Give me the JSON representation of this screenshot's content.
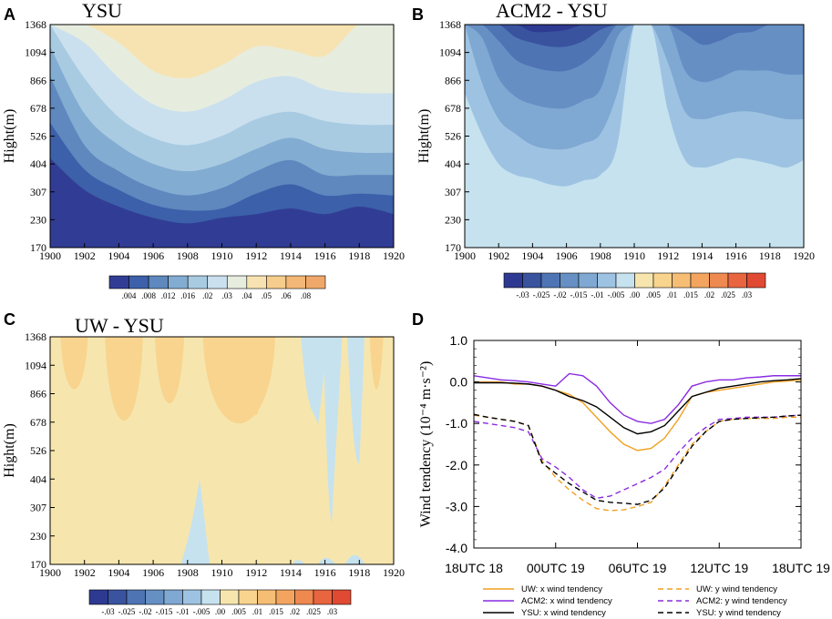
{
  "chart_data": [
    {
      "type": "heatmap",
      "panel": "A",
      "title": "YSU",
      "ylabel": "Hight(m)",
      "x_ticks": [
        "1900",
        "1902",
        "1904",
        "1906",
        "1908",
        "1910",
        "1912",
        "1914",
        "1916",
        "1918",
        "1920"
      ],
      "y_ticks": [
        "170",
        "230",
        "307",
        "404",
        "526",
        "678",
        "866",
        "1094",
        "1368"
      ],
      "colorbar": {
        "labels": [
          ".004",
          ".008",
          ".012",
          ".016",
          ".02",
          ".03",
          ".04",
          ".05",
          ".06",
          ".08"
        ],
        "colors": [
          "#313d95",
          "#3c60a9",
          "#5e88be",
          "#83acd2",
          "#a8cbe2",
          "#cae0ee",
          "#e6eddf",
          "#f7e3b2",
          "#f6cd8d",
          "#f4b876",
          "#f0a86a"
        ]
      },
      "contour_levels": {
        "x": [
          1900,
          1902,
          1904,
          1906,
          1908,
          1910,
          1912,
          1914,
          1916,
          1918,
          1920
        ],
        "bands": [
          [
            650,
            480,
            390,
            330,
            300,
            330,
            350,
            380,
            350,
            390,
            350
          ],
          [
            840,
            590,
            480,
            400,
            370,
            380,
            460,
            510,
            450,
            460,
            450
          ],
          [
            1090,
            720,
            580,
            490,
            450,
            490,
            580,
            640,
            560,
            560,
            560
          ],
          [
            1250,
            890,
            720,
            620,
            580,
            620,
            700,
            760,
            700,
            680,
            680
          ],
          [
            1368,
            1080,
            870,
            760,
            720,
            770,
            860,
            900,
            850,
            830,
            830
          ],
          [
            1368,
            1270,
            1080,
            940,
            900,
            960,
            1060,
            1090,
            1020,
            1000,
            1000
          ],
          [
            1368,
            1368,
            1270,
            1120,
            1080,
            1150,
            1250,
            1230,
            1200,
            1368,
            1368
          ],
          [
            1368,
            1368,
            1368,
            1368,
            1368,
            1368,
            1368,
            1368,
            1368,
            1368,
            1368
          ]
        ]
      }
    },
    {
      "type": "heatmap",
      "panel": "B",
      "title": "ACM2 - YSU",
      "ylabel": "Hight(m)",
      "x_ticks": [
        "1900",
        "1902",
        "1904",
        "1906",
        "1908",
        "1910",
        "1912",
        "1914",
        "1916",
        "1918",
        "1920"
      ],
      "y_ticks": [
        "170",
        "230",
        "307",
        "404",
        "526",
        "678",
        "866",
        "1094",
        "1368"
      ],
      "colorbar": {
        "labels": [
          "-.03",
          "-.025",
          "-.02",
          "-.015",
          "-.01",
          "-.005",
          ".00",
          ".005",
          ".01",
          ".015",
          ".02",
          ".025",
          ".03"
        ],
        "colors": [
          "#2e3a92",
          "#39539f",
          "#4f74b4",
          "#6690c4",
          "#7fa8d2",
          "#9ec3e2",
          "#c6e2ef",
          "#f6e6ad",
          "#f8d48f",
          "#f6be74",
          "#f3a55f",
          "#ee8950",
          "#e8653f",
          "#e04a32"
        ]
      }
    },
    {
      "type": "heatmap",
      "panel": "C",
      "title": "UW - YSU",
      "ylabel": "Hight(m)",
      "x_ticks": [
        "1900",
        "1902",
        "1904",
        "1906",
        "1908",
        "1910",
        "1912",
        "1914",
        "1916",
        "1918",
        "1920"
      ],
      "y_ticks": [
        "170",
        "230",
        "307",
        "404",
        "526",
        "678",
        "866",
        "1094",
        "1368"
      ],
      "colorbar": {
        "labels": [
          "-.03",
          "-.025",
          "-.02",
          "-.015",
          "-.01",
          "-.005",
          ".00",
          ".005",
          ".01",
          ".015",
          ".02",
          ".025",
          ".03"
        ],
        "colors": [
          "#2e3a92",
          "#39539f",
          "#4f74b4",
          "#6690c4",
          "#7fa8d2",
          "#9ec3e2",
          "#c6e2ef",
          "#f6e6ad",
          "#f8d48f",
          "#f6be74",
          "#f3a55f",
          "#ee8950",
          "#e8653f",
          "#e04a32"
        ]
      }
    },
    {
      "type": "line",
      "panel": "D",
      "ylabel": "Wind tendency (10⁻⁴ m·s⁻²)",
      "ylim": [
        -4.0,
        1.0
      ],
      "y_ticks": [
        "1.0",
        "0.0",
        "-1.0",
        "-2.0",
        "-3.0",
        "-4.0"
      ],
      "x_ticks": [
        "18UTC 18",
        "00UTC 19",
        "06UTC 19",
        "12UTC 19",
        "18UTC 19"
      ],
      "x": [
        0,
        1,
        2,
        3,
        4,
        5,
        6,
        7,
        8,
        9,
        10,
        11,
        12,
        13,
        14,
        15,
        16,
        17,
        18,
        19,
        20,
        21,
        22,
        23,
        24
      ],
      "series": [
        {
          "name": "UW: x wind tendency",
          "color": "#f0a020",
          "dash": false,
          "values": [
            0.0,
            0.0,
            0.0,
            -0.05,
            -0.05,
            -0.1,
            -0.2,
            -0.3,
            -0.5,
            -0.85,
            -1.2,
            -1.5,
            -1.65,
            -1.6,
            -1.35,
            -0.9,
            -0.35,
            -0.25,
            -0.2,
            -0.15,
            -0.1,
            -0.05,
            0.0,
            0.02,
            0.05
          ]
        },
        {
          "name": "ACM2: x wind tendency",
          "color": "#8a2be2",
          "dash": false,
          "values": [
            0.15,
            0.1,
            0.05,
            0.03,
            0.0,
            -0.05,
            -0.1,
            0.2,
            0.15,
            -0.1,
            -0.5,
            -0.8,
            -0.95,
            -1.0,
            -0.9,
            -0.55,
            -0.1,
            0.0,
            0.05,
            0.05,
            0.1,
            0.12,
            0.15,
            0.15,
            0.15
          ]
        },
        {
          "name": "YSU: x wind tendency",
          "color": "#000000",
          "dash": false,
          "values": [
            -0.02,
            -0.02,
            -0.02,
            -0.03,
            -0.05,
            -0.1,
            -0.2,
            -0.35,
            -0.45,
            -0.6,
            -0.85,
            -1.1,
            -1.25,
            -1.2,
            -1.05,
            -0.7,
            -0.35,
            -0.25,
            -0.15,
            -0.1,
            -0.05,
            0.0,
            0.03,
            0.05,
            0.08
          ]
        },
        {
          "name": "UW: y wind tendency",
          "color": "#f0a020",
          "dash": true,
          "values": [
            -0.8,
            -0.85,
            -0.9,
            -0.95,
            -1.05,
            -1.9,
            -2.3,
            -2.6,
            -2.85,
            -3.05,
            -3.1,
            -3.08,
            -3.0,
            -2.9,
            -2.5,
            -2.0,
            -1.5,
            -1.2,
            -0.95,
            -0.9,
            -0.88,
            -0.88,
            -0.88,
            -0.85,
            -0.85
          ]
        },
        {
          "name": "ACM2: y wind tendency",
          "color": "#8a2be2",
          "dash": true,
          "values": [
            -0.95,
            -1.0,
            -1.05,
            -1.1,
            -1.2,
            -1.85,
            -2.05,
            -2.3,
            -2.6,
            -2.8,
            -2.75,
            -2.6,
            -2.45,
            -2.3,
            -2.1,
            -1.7,
            -1.35,
            -1.1,
            -0.9,
            -0.88,
            -0.85,
            -0.85,
            -0.85,
            -0.82,
            -0.8
          ]
        },
        {
          "name": "YSU: y wind tendency",
          "color": "#000000",
          "dash": true,
          "values": [
            -0.78,
            -0.85,
            -0.9,
            -0.95,
            -1.05,
            -1.95,
            -2.2,
            -2.45,
            -2.65,
            -2.85,
            -2.9,
            -2.92,
            -2.95,
            -2.85,
            -2.55,
            -2.05,
            -1.55,
            -1.2,
            -0.95,
            -0.9,
            -0.88,
            -0.86,
            -0.85,
            -0.82,
            -0.8
          ]
        }
      ]
    }
  ]
}
